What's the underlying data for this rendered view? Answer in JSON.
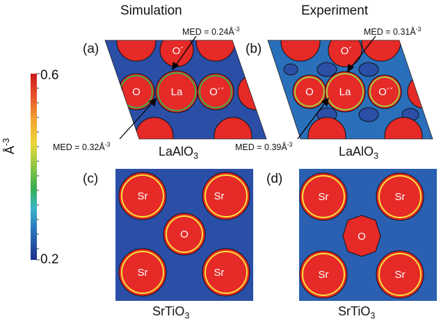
{
  "columns": {
    "left_title": "Simulation",
    "right_title": "Experiment"
  },
  "panels": {
    "a": {
      "letter": "(a)",
      "med_top": "MED = 0.24Å",
      "med_top_exp": "-3",
      "med_bottom": "MED = 0.32Å",
      "med_bottom_exp": "-3",
      "compound": "LaAlO",
      "compound_sub": "3",
      "atoms": [
        "O´",
        "O",
        "La",
        "O´´"
      ]
    },
    "b": {
      "letter": "(b)",
      "med_top": "MED = 0.31Å",
      "med_top_exp": "-3",
      "med_bottom": "MED = 0.39Å",
      "med_bottom_exp": "-3",
      "compound": "LaAlO",
      "compound_sub": "3",
      "atoms": [
        "O´",
        "O",
        "La",
        "O´´"
      ]
    },
    "c": {
      "letter": "(c)",
      "compound": "SrTiO",
      "compound_sub": "3",
      "atoms": [
        "Sr",
        "Sr",
        "O",
        "Sr",
        "Sr"
      ]
    },
    "d": {
      "letter": "(d)",
      "compound": "SrTiO",
      "compound_sub": "3",
      "atoms": [
        "Sr",
        "Sr",
        "O",
        "Sr",
        "Sr"
      ]
    }
  },
  "colorbar": {
    "unit": "Å",
    "unit_exp": "-3",
    "max_label": "0.6",
    "min_label": "0.2",
    "colors": [
      "#b11a1a",
      "#e43a24",
      "#f39a2a",
      "#f6e33b",
      "#9fcf44",
      "#3fae49",
      "#32b7c8",
      "#2a7fc2",
      "#1f4fa3",
      "#1a2f8c"
    ]
  },
  "colors": {
    "background_density": "#2a4ea6",
    "atom_core": "#e52a27",
    "contour": "#111111"
  }
}
